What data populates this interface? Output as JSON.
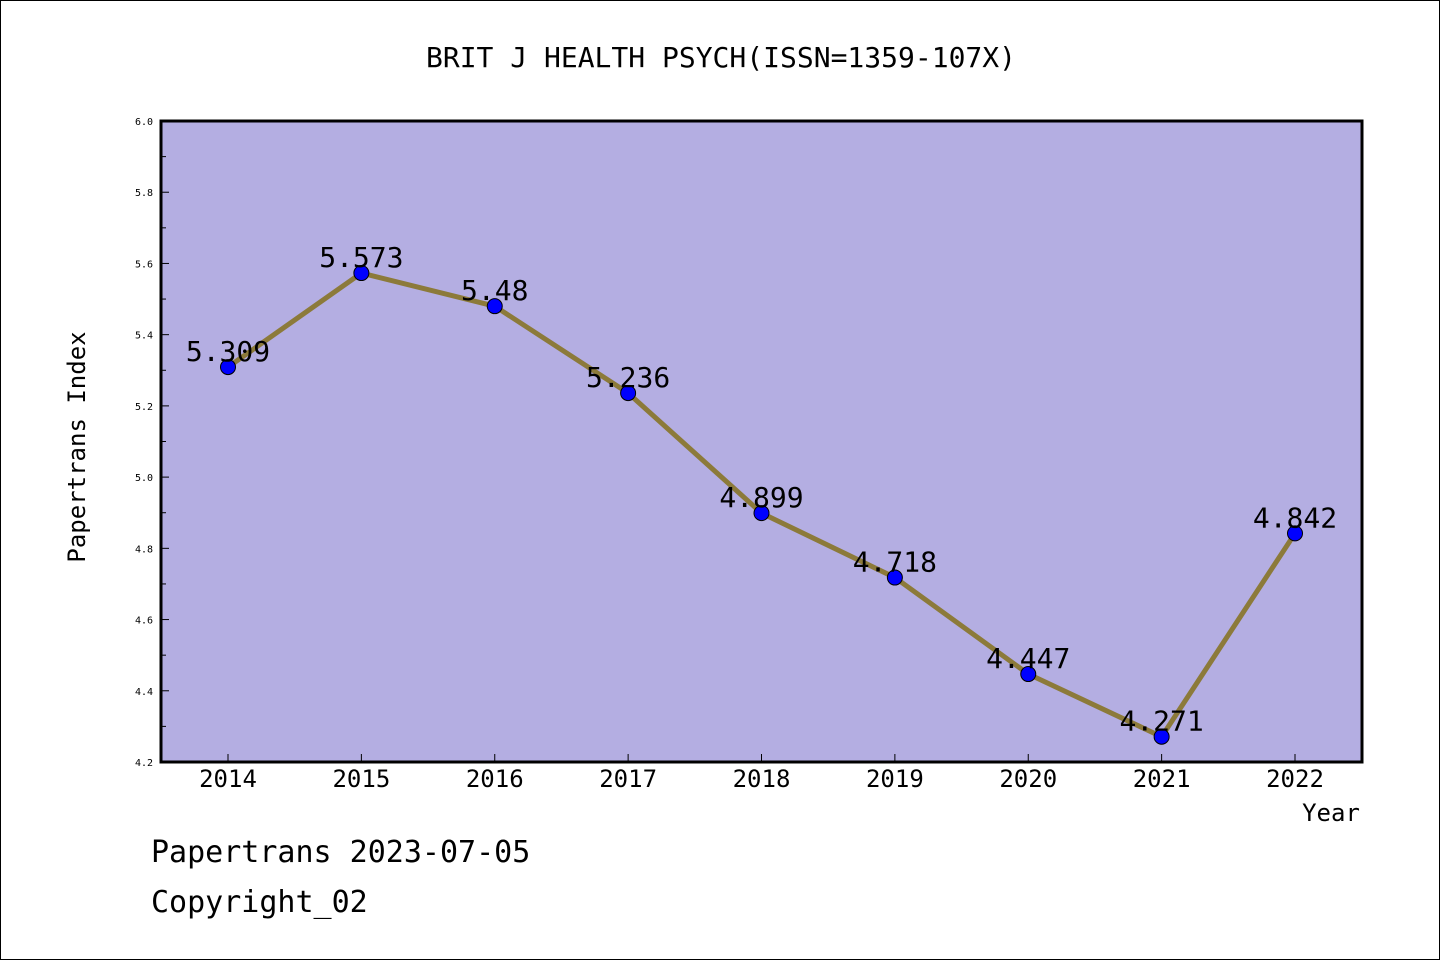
{
  "chart_data": {
    "type": "line",
    "title": "BRIT J HEALTH PSYCH(ISSN=1359-107X)",
    "xlabel": "Year",
    "ylabel": "Papertrans Index",
    "categories": [
      "2014",
      "2015",
      "2016",
      "2017",
      "2018",
      "2019",
      "2020",
      "2021",
      "2022"
    ],
    "series": [
      {
        "values": [
          5.309,
          5.573,
          5.48,
          5.236,
          4.899,
          4.718,
          4.447,
          4.271,
          4.842
        ],
        "value_labels": [
          "5.309",
          "5.573",
          "5.48",
          "5.236",
          "4.899",
          "4.718",
          "4.447",
          "4.271",
          "4.842"
        ]
      }
    ],
    "ylim": [
      4.2,
      6.0
    ],
    "yticks": [
      "4.2",
      "4.4",
      "4.6",
      "4.8",
      "5.0",
      "5.2",
      "5.4",
      "5.6",
      "5.8",
      "6.0"
    ],
    "grid": false,
    "colors": {
      "plot_background": "#b4aee2",
      "line": "#8c7a3a",
      "marker": "#0000ff"
    }
  },
  "footer": {
    "line1": "Papertrans 2023-07-05",
    "line2": "Copyright_02"
  }
}
